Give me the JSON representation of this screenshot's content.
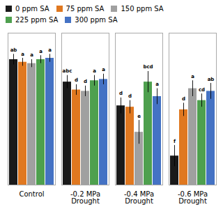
{
  "chart_data": {
    "type": "bar",
    "categories": [
      "Control",
      "-0.2 MPa\nDrought",
      "-0.4 MPa\nDrought",
      "-0.6 MPa\nDrought"
    ],
    "series": [
      {
        "name": "0 ppm SA",
        "color": "#1a1a1a",
        "values": [
          95,
          78,
          60,
          22
        ],
        "errors": [
          4,
          5,
          6,
          8
        ],
        "letters": [
          "ab",
          "abc",
          "d",
          "f"
        ]
      },
      {
        "name": "75 ppm SA",
        "color": "#E07820",
        "values": [
          93,
          72,
          59,
          57
        ],
        "errors": [
          3,
          4,
          5,
          5
        ],
        "letters": [
          "a",
          "d",
          "d",
          "d"
        ]
      },
      {
        "name": "150 ppm SA",
        "color": "#A0A0A0",
        "values": [
          92,
          71,
          40,
          73
        ],
        "errors": [
          3,
          4,
          9,
          6
        ],
        "letters": [
          "a",
          "d",
          "e",
          "a"
        ]
      },
      {
        "name": "225 ppm SA",
        "color": "#4EA04E",
        "values": [
          95,
          79,
          78,
          64
        ],
        "errors": [
          3,
          4,
          8,
          5
        ],
        "letters": [
          "a",
          "a",
          "bcd",
          "cd"
        ]
      },
      {
        "name": "300 ppm SA",
        "color": "#4472C4",
        "values": [
          96,
          80,
          67,
          71
        ],
        "errors": [
          3,
          4,
          6,
          6
        ],
        "letters": [
          "a",
          "a",
          "a",
          "ab"
        ]
      }
    ],
    "ylim": [
      0,
      115
    ],
    "yticks": [],
    "tick_labels": "x",
    "grid": false,
    "legend": "top"
  }
}
